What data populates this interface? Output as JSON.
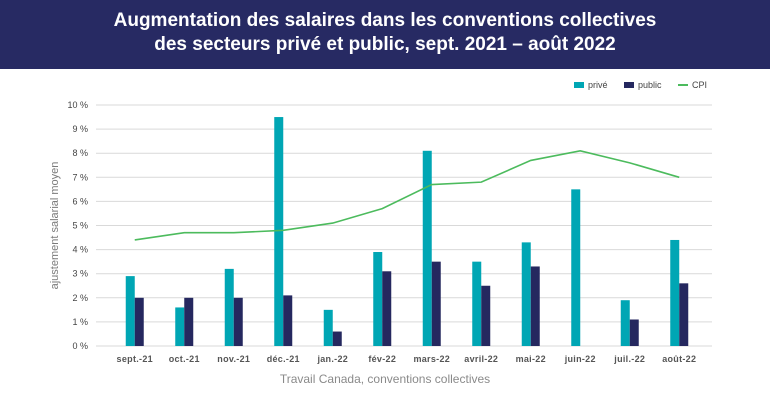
{
  "header": {
    "title_line1": "Augmentation des salaires dans les conventions collectives",
    "title_line2": "des secteurs privé et public, sept. 2021 – août 2022"
  },
  "colors": {
    "banner": "#272a63",
    "prive": "#00a6b4",
    "public": "#25285f",
    "cpi": "#4cbb5d",
    "grid": "#d9d9d9"
  },
  "source_text": "Travail Canada, conventions collectives",
  "chart_data": {
    "type": "bar",
    "title": "Augmentation des salaires dans les conventions collectives des secteurs privé et public, sept. 2021 – août 2022",
    "xlabel": "",
    "ylabel": "ajustement salarial moyen",
    "ylim": [
      0,
      10
    ],
    "yticks": [
      0,
      1,
      2,
      3,
      4,
      5,
      6,
      7,
      8,
      9,
      10
    ],
    "ytick_labels": [
      "0 %",
      "1 %",
      "2 %",
      "3 %",
      "4 %",
      "5 %",
      "6 %",
      "7 %",
      "8 %",
      "9 %",
      "10 %"
    ],
    "grid": true,
    "legend_position": "top-right",
    "categories": [
      "sept.-21",
      "oct.-21",
      "nov.-21",
      "déc.-21",
      "jan.-22",
      "fév-22",
      "mars-22",
      "avril-22",
      "mai-22",
      "juin-22",
      "juil.-22",
      "août-22"
    ],
    "series": [
      {
        "name": "privé",
        "kind": "bar",
        "color": "#00a6b4",
        "values": [
          2.9,
          1.6,
          3.2,
          9.5,
          1.5,
          3.9,
          8.1,
          3.5,
          4.3,
          6.5,
          1.9,
          4.4
        ]
      },
      {
        "name": "public",
        "kind": "bar",
        "color": "#25285f",
        "values": [
          2.0,
          2.0,
          2.0,
          2.1,
          0.6,
          3.1,
          3.5,
          2.5,
          3.3,
          null,
          1.1,
          2.6
        ]
      },
      {
        "name": "CPI",
        "kind": "line",
        "color": "#4cbb5d",
        "values": [
          4.4,
          4.7,
          4.7,
          4.8,
          5.1,
          5.7,
          6.7,
          6.8,
          7.7,
          8.1,
          7.6,
          7.0
        ]
      }
    ]
  }
}
